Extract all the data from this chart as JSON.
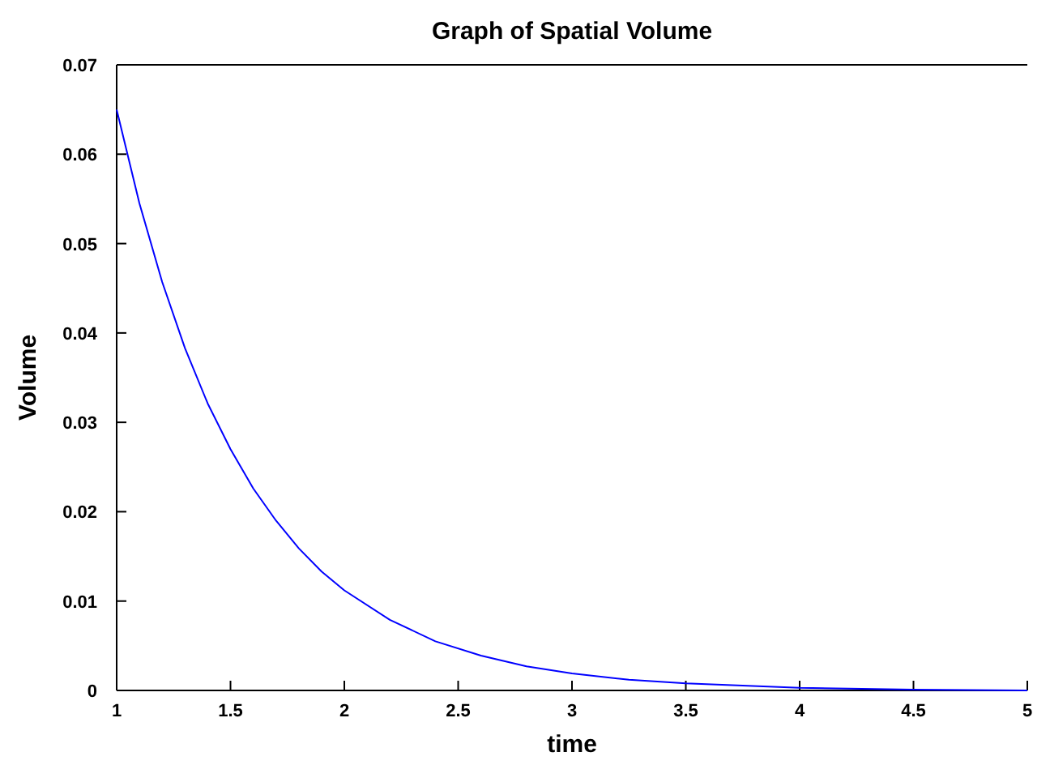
{
  "chart_data": {
    "type": "line",
    "title": "Graph of Spatial Volume",
    "xlabel": "time",
    "ylabel": "Volume",
    "x": [
      1,
      1.1,
      1.2,
      1.3,
      1.4,
      1.5,
      1.6,
      1.7,
      1.8,
      1.9,
      2,
      2.2,
      2.4,
      2.6,
      2.8,
      3,
      3.25,
      3.5,
      4,
      4.5,
      5
    ],
    "series": [
      {
        "color": "#0000ff",
        "values": [
          0.065,
          0.0545,
          0.0457,
          0.0383,
          0.0321,
          0.027,
          0.0226,
          0.019,
          0.0159,
          0.0133,
          0.0112,
          0.0079,
          0.0055,
          0.0039,
          0.0027,
          0.0019,
          0.0012,
          0.0008,
          0.0003,
          0.0001,
          0
        ]
      }
    ],
    "xlim": [
      1,
      5
    ],
    "xticks": [
      1,
      1.5,
      2,
      2.5,
      3,
      3.5,
      4,
      4.5,
      5
    ],
    "ylim": [
      0,
      0.07
    ],
    "yticks": [
      0,
      0.01,
      0.02,
      0.03,
      0.04,
      0.05,
      0.06,
      0.07
    ],
    "grid": false,
    "marker": "none",
    "line_style": "solid"
  }
}
